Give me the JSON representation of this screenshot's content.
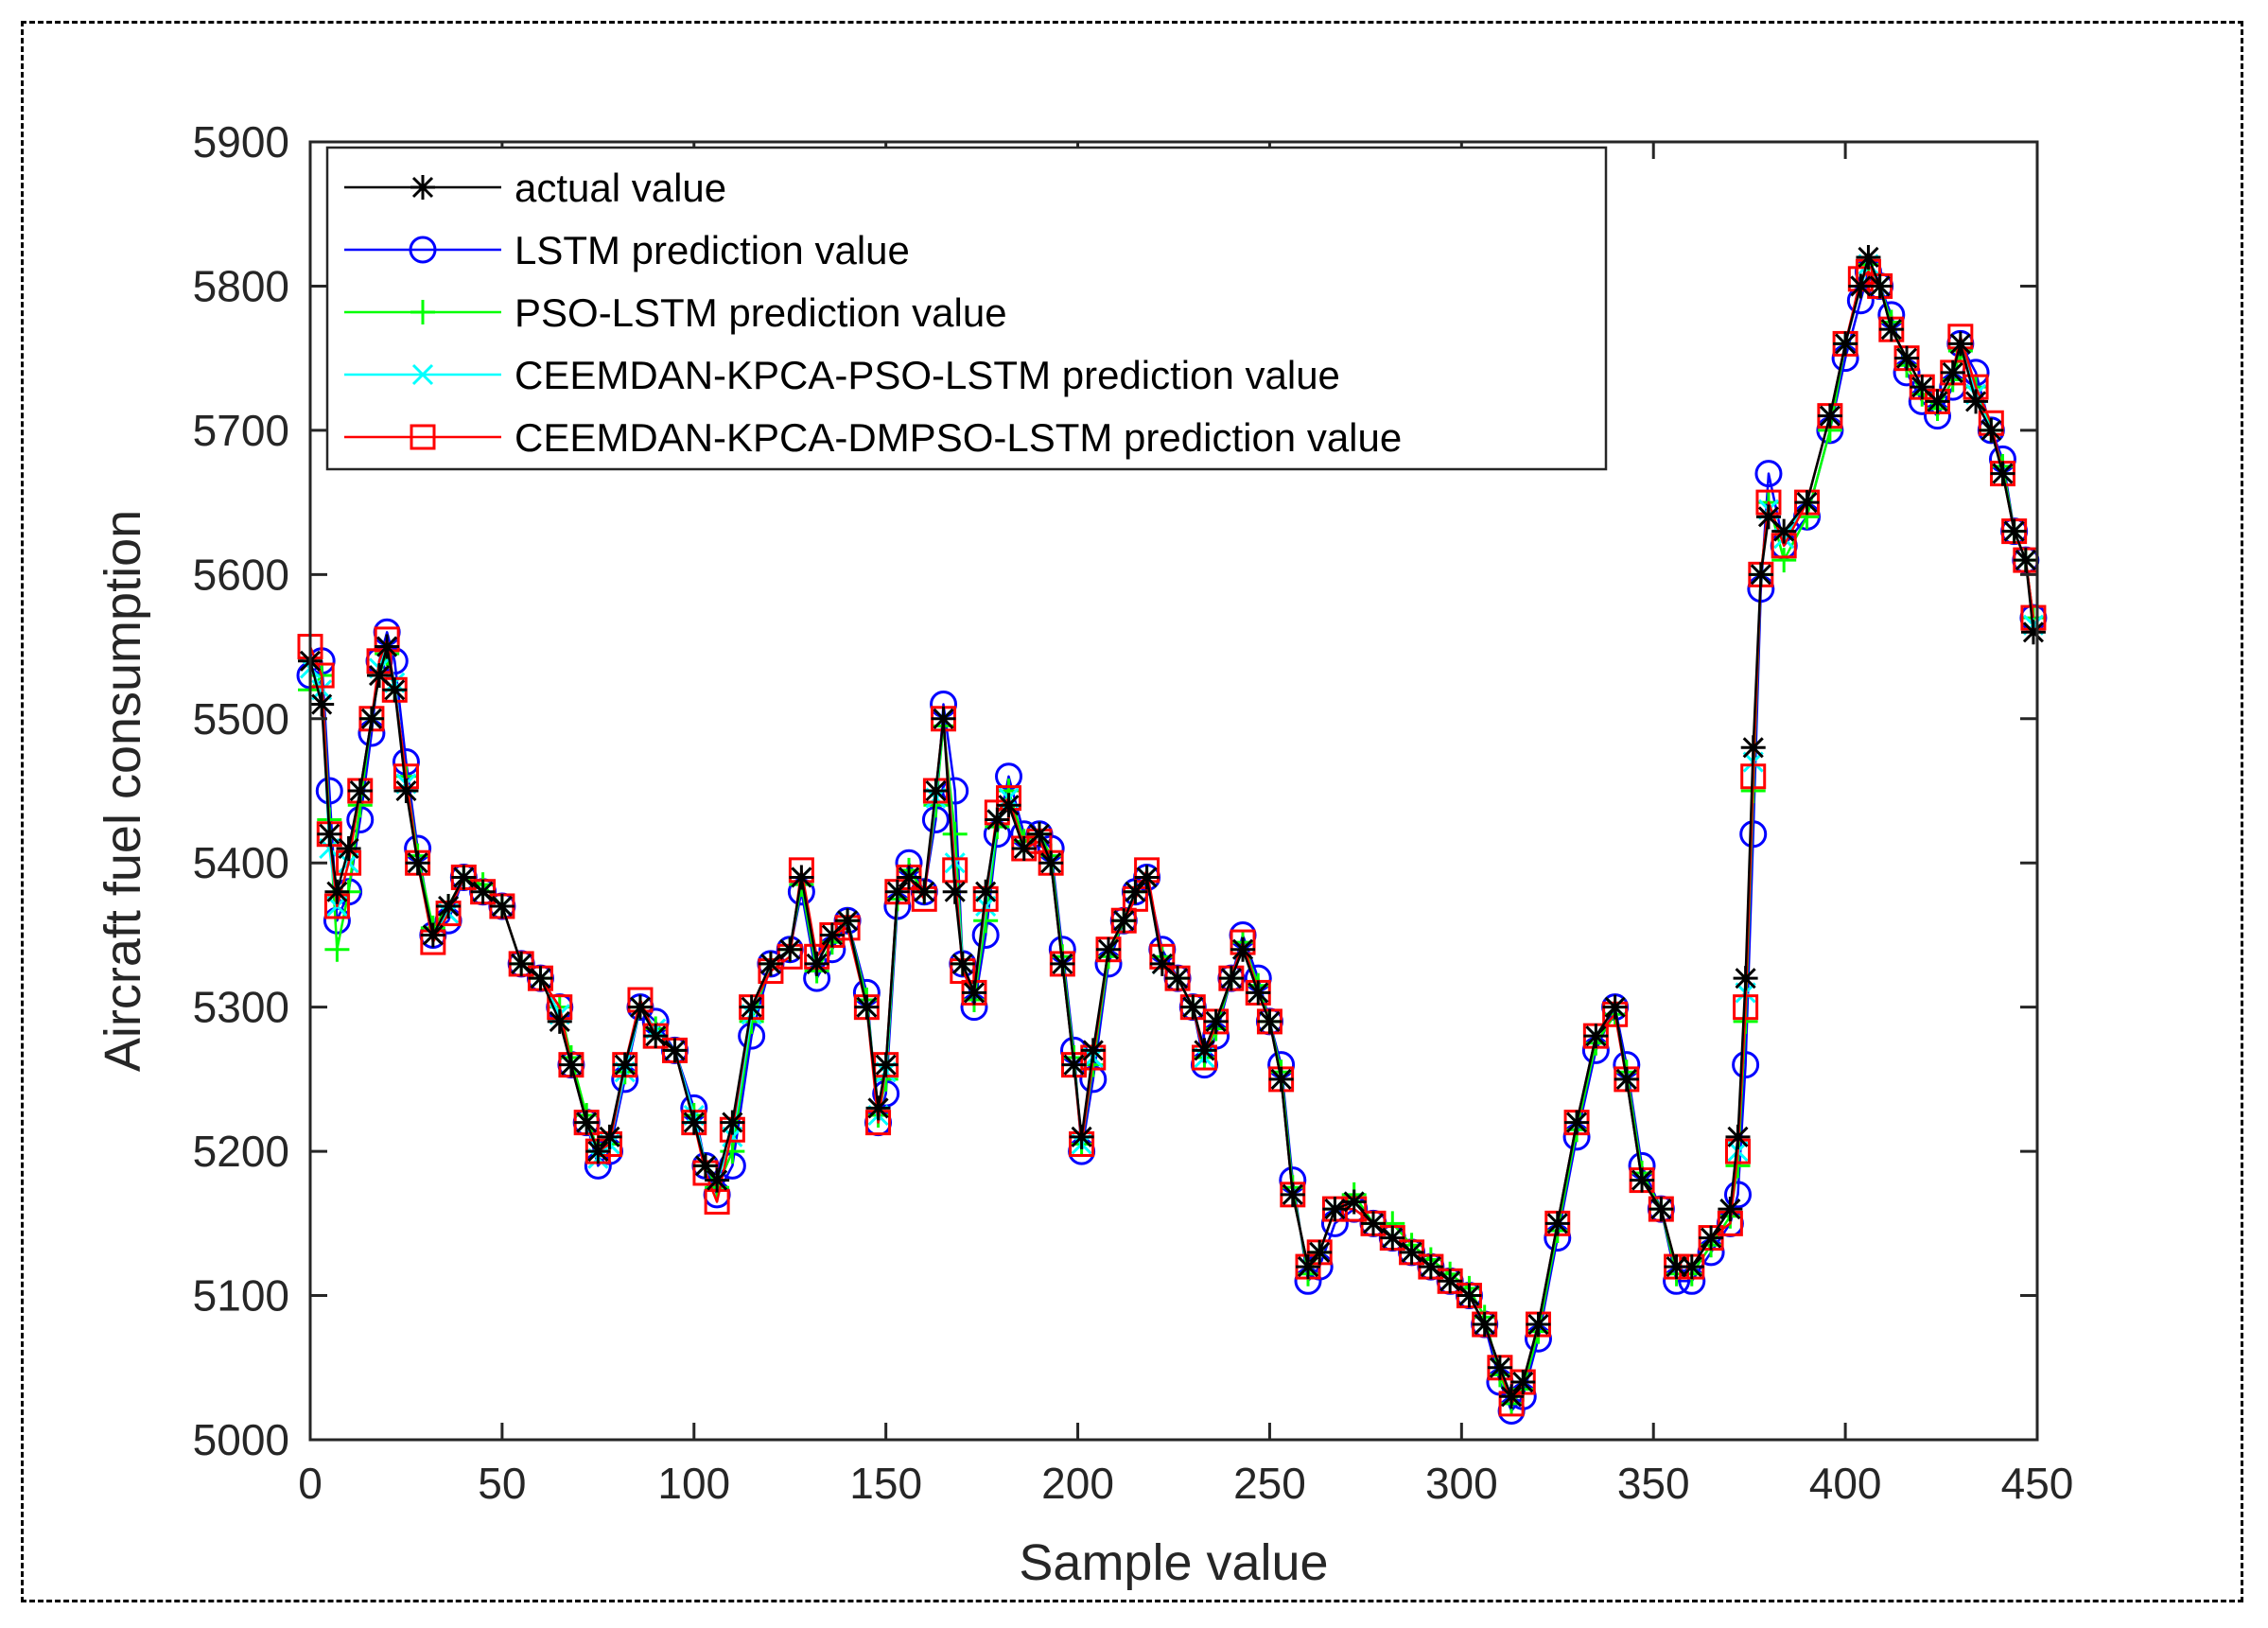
{
  "chart_data": {
    "type": "line",
    "title": "",
    "xlabel": "Sample value",
    "ylabel": "Aircraft fuel consumption",
    "xlim": [
      0,
      450
    ],
    "ylim": [
      5000,
      5900
    ],
    "xticks": [
      "0",
      "50",
      "100",
      "150",
      "200",
      "250",
      "300",
      "350",
      "400",
      "450"
    ],
    "yticks": [
      "5000",
      "5100",
      "5200",
      "5300",
      "5400",
      "5500",
      "5600",
      "5700",
      "5800",
      "5900"
    ],
    "legend_position": "top-left",
    "grid": false,
    "x": [
      0,
      3,
      5,
      7,
      10,
      13,
      16,
      18,
      20,
      22,
      25,
      28,
      32,
      36,
      40,
      45,
      50,
      55,
      60,
      65,
      68,
      72,
      75,
      78,
      82,
      86,
      90,
      95,
      100,
      103,
      106,
      110,
      115,
      120,
      125,
      128,
      132,
      136,
      140,
      145,
      148,
      150,
      153,
      156,
      160,
      163,
      165,
      168,
      170,
      173,
      176,
      179,
      182,
      186,
      190,
      193,
      196,
      199,
      201,
      204,
      208,
      212,
      215,
      218,
      222,
      226,
      230,
      233,
      236,
      240,
      243,
      247,
      250,
      253,
      256,
      260,
      263,
      267,
      272,
      277,
      282,
      287,
      292,
      297,
      302,
      306,
      310,
      313,
      316,
      320,
      325,
      330,
      335,
      340,
      343,
      347,
      352,
      356,
      360,
      365,
      370,
      372,
      374,
      376,
      378,
      380,
      384,
      390,
      396,
      400,
      404,
      406,
      409,
      412,
      416,
      420,
      424,
      428,
      430,
      434,
      438,
      441,
      444,
      447,
      449
    ],
    "series": [
      {
        "name": "actual value",
        "color": "#000000",
        "marker": "star",
        "values": [
          5540,
          5510,
          5420,
          5380,
          5410,
          5450,
          5500,
          5530,
          5550,
          5520,
          5450,
          5400,
          5350,
          5370,
          5390,
          5380,
          5370,
          5330,
          5320,
          5290,
          5260,
          5220,
          5200,
          5210,
          5260,
          5300,
          5280,
          5270,
          5220,
          5190,
          5180,
          5220,
          5300,
          5330,
          5340,
          5390,
          5330,
          5350,
          5360,
          5300,
          5230,
          5260,
          5380,
          5390,
          5380,
          5450,
          5500,
          5380,
          5330,
          5310,
          5380,
          5430,
          5440,
          5410,
          5420,
          5400,
          5330,
          5260,
          5210,
          5270,
          5340,
          5360,
          5380,
          5390,
          5330,
          5320,
          5300,
          5270,
          5290,
          5320,
          5340,
          5310,
          5290,
          5250,
          5170,
          5120,
          5130,
          5160,
          5165,
          5150,
          5140,
          5130,
          5120,
          5110,
          5100,
          5080,
          5050,
          5030,
          5040,
          5080,
          5150,
          5220,
          5280,
          5300,
          5250,
          5180,
          5160,
          5120,
          5120,
          5140,
          5160,
          5210,
          5320,
          5480,
          5600,
          5640,
          5630,
          5650,
          5710,
          5760,
          5800,
          5820,
          5800,
          5770,
          5750,
          5730,
          5720,
          5740,
          5760,
          5720,
          5700,
          5670,
          5630,
          5610,
          5560
        ]
      },
      {
        "name": "LSTM prediction value",
        "color": "#0000ff",
        "marker": "circle",
        "values": [
          5530,
          5540,
          5450,
          5360,
          5380,
          5430,
          5490,
          5540,
          5560,
          5540,
          5470,
          5410,
          5350,
          5360,
          5390,
          5380,
          5370,
          5330,
          5320,
          5300,
          5260,
          5220,
          5190,
          5200,
          5250,
          5300,
          5290,
          5270,
          5230,
          5190,
          5170,
          5190,
          5280,
          5330,
          5340,
          5380,
          5320,
          5340,
          5360,
          5310,
          5220,
          5240,
          5370,
          5400,
          5380,
          5430,
          5510,
          5450,
          5330,
          5300,
          5350,
          5420,
          5460,
          5420,
          5420,
          5410,
          5340,
          5270,
          5200,
          5250,
          5330,
          5360,
          5380,
          5390,
          5340,
          5320,
          5300,
          5260,
          5280,
          5320,
          5350,
          5320,
          5290,
          5260,
          5180,
          5110,
          5120,
          5150,
          5160,
          5150,
          5140,
          5130,
          5120,
          5110,
          5100,
          5080,
          5040,
          5020,
          5030,
          5070,
          5140,
          5210,
          5270,
          5300,
          5260,
          5190,
          5160,
          5110,
          5110,
          5130,
          5150,
          5170,
          5260,
          5420,
          5590,
          5670,
          5620,
          5640,
          5700,
          5750,
          5790,
          5810,
          5800,
          5780,
          5740,
          5720,
          5710,
          5730,
          5760,
          5740,
          5700,
          5680,
          5630,
          5610,
          5570
        ]
      },
      {
        "name": "PSO-LSTM prediction value",
        "color": "#00ff00",
        "marker": "plus",
        "values": [
          5520,
          5530,
          5430,
          5340,
          5380,
          5440,
          5500,
          5530,
          5545,
          5520,
          5460,
          5405,
          5355,
          5370,
          5390,
          5385,
          5370,
          5330,
          5320,
          5300,
          5265,
          5225,
          5200,
          5205,
          5255,
          5300,
          5285,
          5270,
          5225,
          5190,
          5175,
          5200,
          5290,
          5330,
          5340,
          5385,
          5325,
          5345,
          5360,
          5305,
          5225,
          5250,
          5375,
          5395,
          5380,
          5440,
          5495,
          5420,
          5330,
          5305,
          5360,
          5425,
          5450,
          5415,
          5420,
          5405,
          5335,
          5265,
          5205,
          5260,
          5335,
          5360,
          5380,
          5390,
          5335,
          5320,
          5300,
          5265,
          5285,
          5320,
          5345,
          5315,
          5290,
          5255,
          5175,
          5115,
          5130,
          5160,
          5170,
          5150,
          5150,
          5135,
          5125,
          5115,
          5105,
          5085,
          5045,
          5025,
          5035,
          5075,
          5145,
          5215,
          5275,
          5295,
          5255,
          5185,
          5160,
          5115,
          5115,
          5135,
          5155,
          5190,
          5290,
          5450,
          5600,
          5650,
          5610,
          5640,
          5700,
          5760,
          5800,
          5815,
          5800,
          5775,
          5745,
          5725,
          5715,
          5735,
          5755,
          5730,
          5700,
          5675,
          5630,
          5610,
          5570
        ]
      },
      {
        "name": "CEEMDAN-KPCA-PSO-LSTM prediction value",
        "color": "#00ffff",
        "marker": "cross",
        "values": [
          5535,
          5520,
          5410,
          5370,
          5400,
          5450,
          5500,
          5535,
          5550,
          5525,
          5455,
          5400,
          5350,
          5365,
          5390,
          5380,
          5370,
          5330,
          5320,
          5295,
          5260,
          5220,
          5195,
          5205,
          5255,
          5300,
          5285,
          5270,
          5225,
          5190,
          5180,
          5210,
          5295,
          5330,
          5340,
          5390,
          5330,
          5350,
          5360,
          5300,
          5225,
          5255,
          5380,
          5390,
          5380,
          5445,
          5500,
          5400,
          5330,
          5310,
          5370,
          5430,
          5445,
          5410,
          5420,
          5400,
          5330,
          5260,
          5205,
          5265,
          5340,
          5360,
          5380,
          5390,
          5330,
          5320,
          5300,
          5265,
          5290,
          5320,
          5340,
          5310,
          5290,
          5250,
          5170,
          5120,
          5130,
          5160,
          5165,
          5150,
          5140,
          5130,
          5120,
          5110,
          5100,
          5080,
          5050,
          5030,
          5040,
          5080,
          5150,
          5220,
          5280,
          5300,
          5250,
          5180,
          5160,
          5120,
          5120,
          5140,
          5160,
          5200,
          5310,
          5470,
          5600,
          5645,
          5625,
          5650,
          5710,
          5760,
          5800,
          5815,
          5800,
          5770,
          5750,
          5730,
          5720,
          5740,
          5760,
          5725,
          5700,
          5670,
          5630,
          5610,
          5565
        ]
      },
      {
        "name": "CEEMDAN-KPCA-DMPSO-LSTM prediction value",
        "color": "#ff0000",
        "marker": "square",
        "values": [
          5550,
          5530,
          5420,
          5370,
          5400,
          5450,
          5500,
          5540,
          5555,
          5520,
          5460,
          5400,
          5345,
          5365,
          5390,
          5380,
          5370,
          5330,
          5320,
          5300,
          5260,
          5220,
          5200,
          5205,
          5260,
          5305,
          5280,
          5270,
          5220,
          5185,
          5165,
          5215,
          5300,
          5325,
          5335,
          5395,
          5335,
          5350,
          5355,
          5300,
          5220,
          5260,
          5380,
          5390,
          5375,
          5450,
          5500,
          5395,
          5325,
          5310,
          5375,
          5435,
          5445,
          5410,
          5415,
          5400,
          5330,
          5260,
          5205,
          5265,
          5340,
          5360,
          5375,
          5395,
          5335,
          5320,
          5300,
          5265,
          5290,
          5320,
          5345,
          5310,
          5290,
          5250,
          5170,
          5120,
          5130,
          5160,
          5160,
          5150,
          5140,
          5130,
          5120,
          5110,
          5100,
          5080,
          5050,
          5025,
          5040,
          5080,
          5150,
          5220,
          5280,
          5295,
          5250,
          5180,
          5160,
          5120,
          5120,
          5140,
          5150,
          5200,
          5300,
          5460,
          5600,
          5650,
          5620,
          5650,
          5710,
          5760,
          5805,
          5810,
          5800,
          5770,
          5750,
          5730,
          5720,
          5740,
          5765,
          5730,
          5705,
          5670,
          5630,
          5610,
          5570
        ]
      }
    ]
  }
}
